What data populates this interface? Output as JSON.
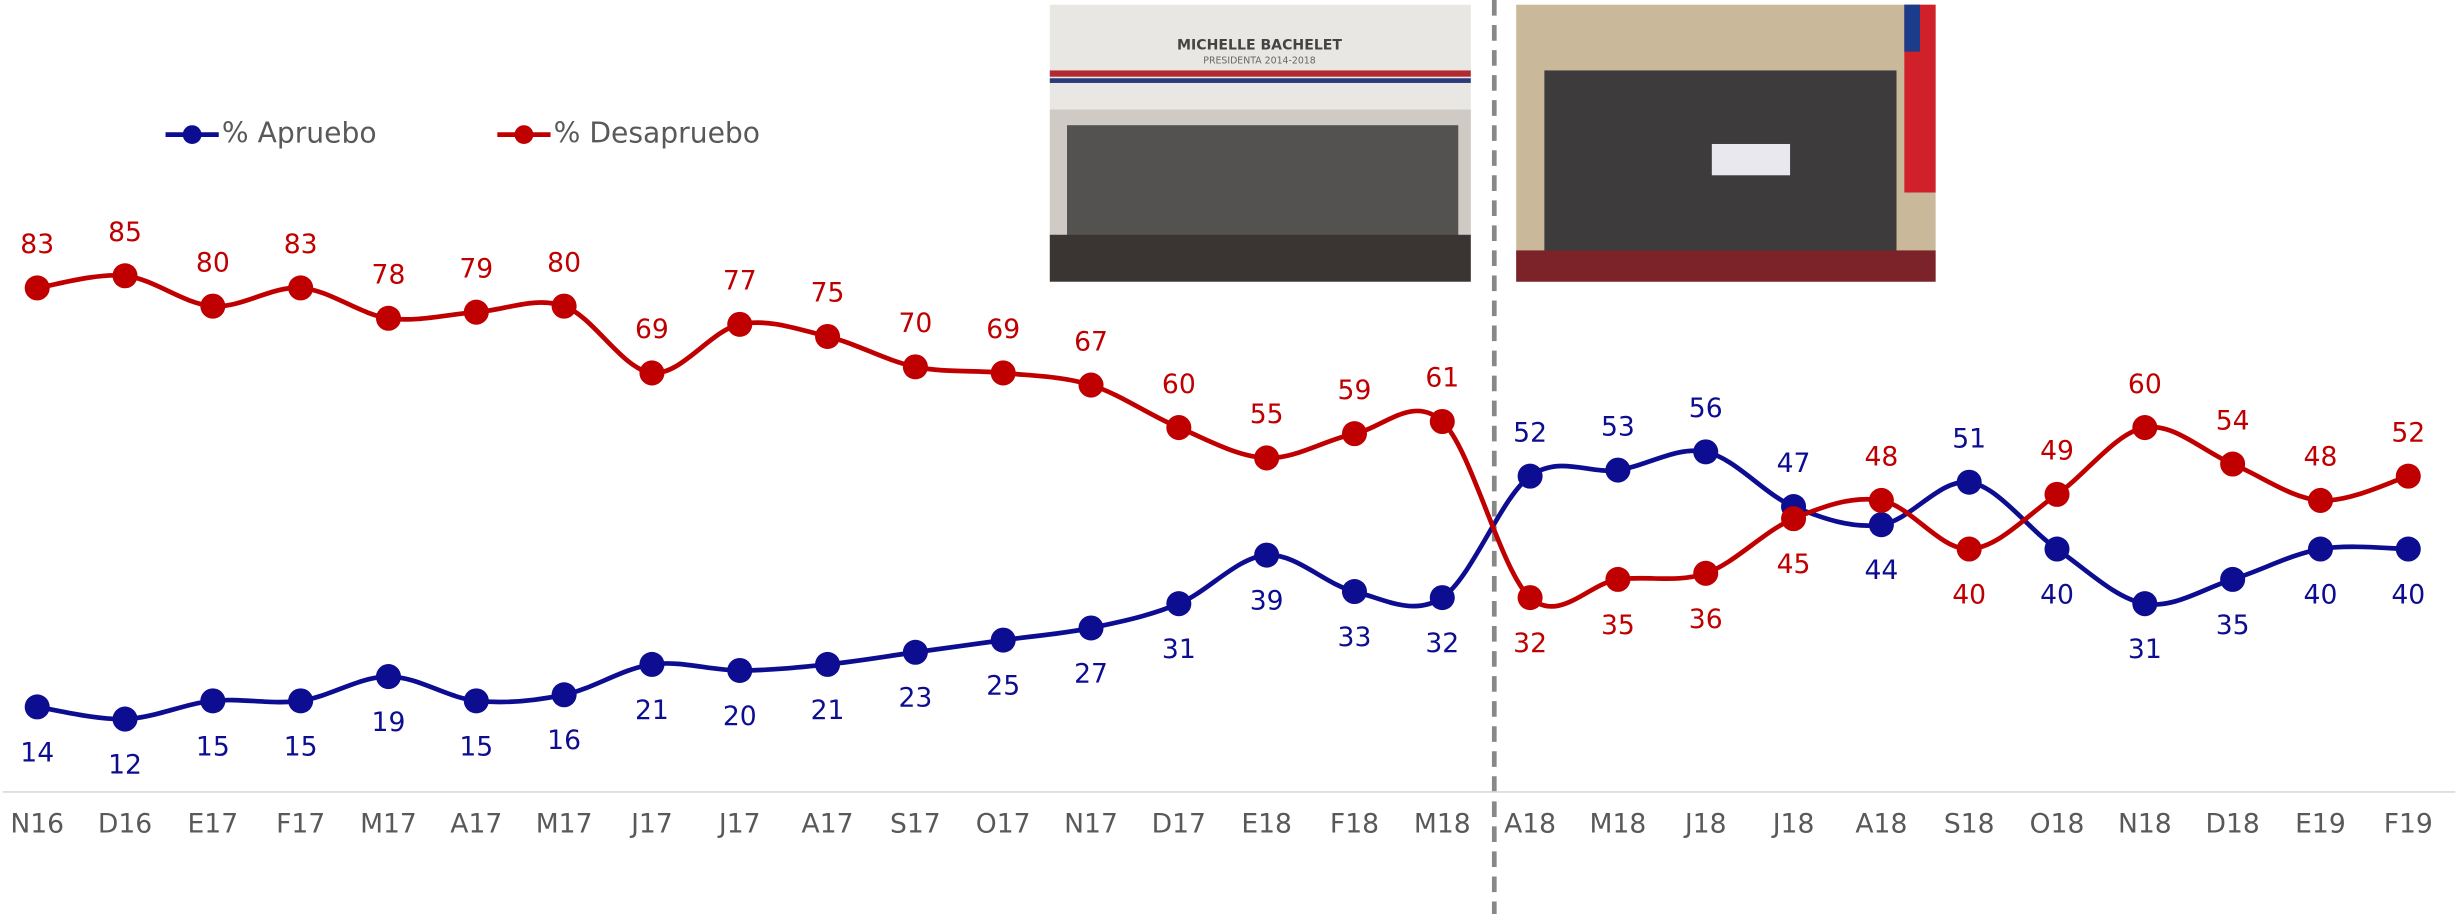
{
  "chart_data": {
    "type": "line",
    "categories": [
      "N16",
      "D16",
      "E17",
      "F17",
      "M17",
      "A17",
      "M17",
      "J17",
      "J17",
      "A17",
      "S17",
      "O17",
      "N17",
      "D17",
      "E18",
      "F18",
      "M18",
      "A18",
      "M18",
      "J18",
      "J18",
      "A18",
      "S18",
      "O18",
      "N18",
      "D18",
      "E19",
      "F19"
    ],
    "series": [
      {
        "name": "% Apruebo",
        "color": "#0d0d91",
        "values": [
          14,
          12,
          15,
          15,
          19,
          15,
          16,
          21,
          20,
          21,
          23,
          25,
          27,
          31,
          39,
          33,
          32,
          52,
          53,
          56,
          47,
          44,
          51,
          40,
          31,
          35,
          40,
          40
        ]
      },
      {
        "name": "% Desapruebo",
        "color": "#c00000",
        "values": [
          83,
          85,
          80,
          83,
          78,
          79,
          80,
          69,
          77,
          75,
          70,
          69,
          67,
          60,
          55,
          59,
          61,
          32,
          35,
          36,
          45,
          48,
          40,
          49,
          60,
          54,
          48,
          52
        ]
      }
    ],
    "ylim": [
      0,
      100
    ],
    "photos": [
      {
        "title": "MICHELLE BACHELET",
        "subtitle": "PRESIDENTA 2014-2018"
      }
    ]
  }
}
